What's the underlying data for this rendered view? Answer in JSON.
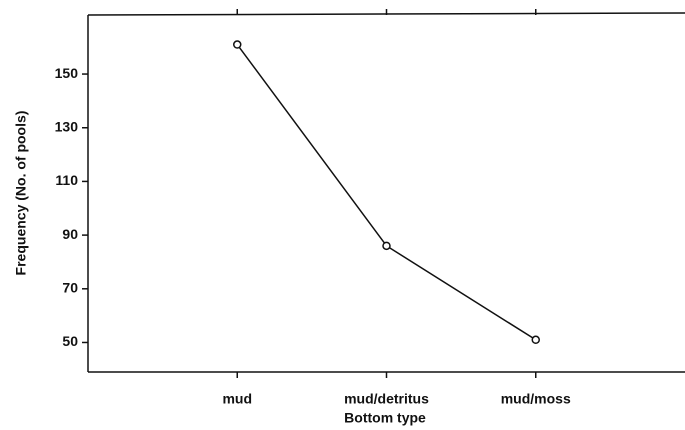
{
  "chart_data": {
    "type": "line",
    "x_label": "Bottom type",
    "y_label": "Frequency (No. of pools)",
    "categories": [
      "mud",
      "mud/detritus",
      "mud/moss"
    ],
    "values": [
      161,
      86,
      51
    ],
    "color": "#111111",
    "ylim": [
      39,
      172
    ],
    "yticks": [
      50,
      70,
      90,
      110,
      130,
      150
    ],
    "grid": false
  }
}
